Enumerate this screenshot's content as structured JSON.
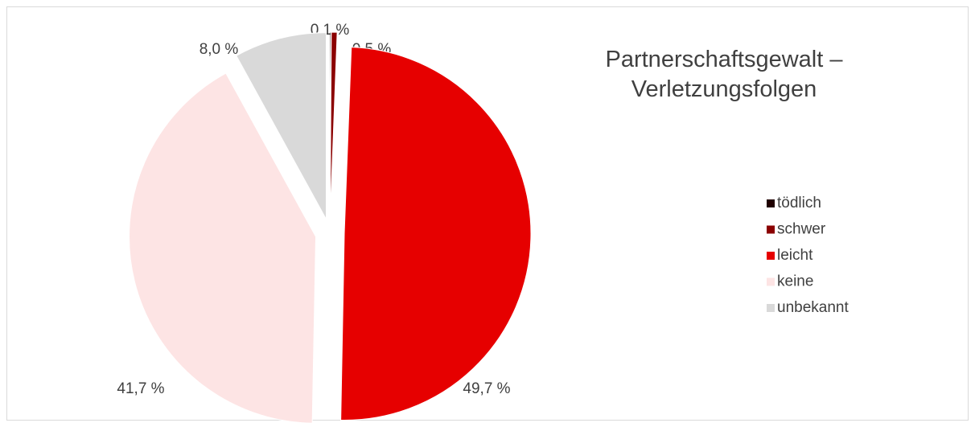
{
  "chart_data": {
    "type": "pie",
    "title": "Partnerschaftsgewalt – Verletzungsfolgen",
    "categories": [
      "tödlich",
      "schwer",
      "leicht",
      "keine",
      "unbekannt"
    ],
    "values": [
      0.1,
      0.5,
      49.7,
      41.7,
      8.0
    ],
    "value_labels": [
      "0,1 %",
      "0,5 %",
      "49,7 %",
      "41,7 %",
      "8,0 %"
    ],
    "colors": [
      "#1f0000",
      "#8b0000",
      "#e60000",
      "#fde4e4",
      "#d9d9d9"
    ],
    "legend": "right"
  }
}
